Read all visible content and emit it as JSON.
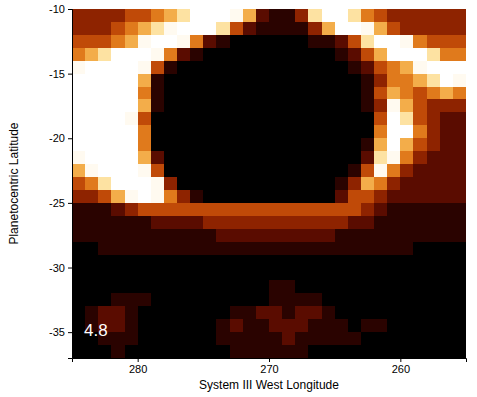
{
  "chart_data": {
    "type": "heatmap",
    "x_label": "System III West Longitude",
    "y_label": "Planetocentric Latitude",
    "annotations": [
      "4.8"
    ],
    "xlim": [
      285,
      255
    ],
    "ylim": [
      -37,
      -10
    ],
    "xticks": [
      280,
      270,
      260
    ],
    "yticks": [
      -10,
      -15,
      -20,
      -25,
      -30,
      -35
    ],
    "zlim": [
      0,
      9
    ],
    "x": [
      284.5,
      283.5,
      282.5,
      281.5,
      280.5,
      279.5,
      278.5,
      277.5,
      276.5,
      275.5,
      274.5,
      273.5,
      272.5,
      271.5,
      270.5,
      269.5,
      268.5,
      267.5,
      266.5,
      265.5,
      264.5,
      263.5,
      262.5,
      261.5,
      260.5,
      259.5,
      258.5,
      257.5,
      256.5,
      255.5
    ],
    "y": [
      -10.5,
      -11.5,
      -12.5,
      -13.5,
      -14.5,
      -15.5,
      -16.5,
      -17.5,
      -18.5,
      -19.5,
      -20.5,
      -21.5,
      -22.5,
      -23.5,
      -24.5,
      -25.5,
      -26.5,
      -27.5,
      -28.5,
      -29.5,
      -30.5,
      -31.5,
      -32.5,
      -33.5,
      -34.5,
      -35.5,
      -36.5
    ],
    "values": [
      [
        3,
        3,
        3,
        3,
        4,
        4,
        5,
        6,
        7,
        9,
        9,
        9,
        8,
        6,
        2,
        1,
        1,
        3,
        7,
        9,
        9,
        7,
        5,
        4,
        3,
        3,
        3,
        3,
        3,
        3
      ],
      [
        3,
        3,
        3,
        4,
        5,
        6,
        7,
        8,
        9,
        9,
        9,
        7,
        4,
        2,
        1,
        1,
        1,
        1,
        3,
        6,
        9,
        9,
        8,
        6,
        4,
        3,
        3,
        3,
        3,
        3
      ],
      [
        4,
        4,
        4,
        5,
        6,
        8,
        9,
        9,
        8,
        5,
        2,
        1,
        0,
        0,
        0,
        0,
        0,
        0,
        1,
        1,
        2,
        4,
        7,
        9,
        9,
        8,
        5,
        4,
        4,
        4
      ],
      [
        5,
        6,
        7,
        9,
        9,
        9,
        8,
        5,
        2,
        1,
        0,
        0,
        0,
        0,
        0,
        0,
        0,
        0,
        0,
        0,
        1,
        2,
        4,
        6,
        9,
        9,
        9,
        7,
        5,
        5
      ],
      [
        8,
        9,
        9,
        9,
        9,
        8,
        4,
        1,
        0,
        0,
        0,
        0,
        0,
        0,
        0,
        0,
        0,
        0,
        0,
        0,
        0,
        1,
        2,
        4,
        5,
        6,
        8,
        9,
        9,
        9
      ],
      [
        9,
        9,
        9,
        9,
        9,
        6,
        1,
        0,
        0,
        0,
        0,
        0,
        0,
        0,
        0,
        0,
        0,
        0,
        0,
        0,
        0,
        0,
        1,
        3,
        5,
        5,
        6,
        7,
        9,
        8
      ],
      [
        9,
        9,
        9,
        9,
        9,
        5,
        1,
        0,
        0,
        0,
        0,
        0,
        0,
        0,
        0,
        0,
        0,
        0,
        0,
        0,
        0,
        0,
        1,
        4,
        6,
        5,
        4,
        5,
        6,
        5
      ],
      [
        9,
        9,
        9,
        9,
        9,
        6,
        1,
        0,
        0,
        0,
        0,
        0,
        0,
        0,
        0,
        0,
        0,
        0,
        0,
        0,
        0,
        0,
        1,
        3,
        8,
        6,
        4,
        3,
        3,
        3
      ],
      [
        9,
        9,
        9,
        9,
        8,
        4,
        0,
        0,
        0,
        0,
        0,
        0,
        0,
        0,
        0,
        0,
        0,
        0,
        0,
        0,
        0,
        0,
        0,
        4,
        9,
        7,
        4,
        3,
        2,
        2
      ],
      [
        9,
        9,
        9,
        9,
        9,
        5,
        0,
        0,
        0,
        0,
        0,
        0,
        0,
        0,
        0,
        0,
        0,
        0,
        0,
        0,
        0,
        0,
        0,
        5,
        9,
        9,
        5,
        3,
        2,
        2
      ],
      [
        9,
        9,
        9,
        9,
        9,
        5,
        0,
        0,
        0,
        0,
        0,
        0,
        0,
        0,
        0,
        0,
        0,
        0,
        0,
        0,
        0,
        0,
        1,
        6,
        9,
        6,
        4,
        3,
        2,
        2
      ],
      [
        8,
        9,
        9,
        9,
        9,
        6,
        2,
        0,
        0,
        0,
        0,
        0,
        0,
        0,
        0,
        0,
        0,
        0,
        0,
        0,
        0,
        0,
        2,
        7,
        8,
        5,
        3,
        2,
        2,
        2
      ],
      [
        6,
        8,
        9,
        9,
        9,
        8,
        4,
        0,
        0,
        0,
        0,
        0,
        0,
        0,
        0,
        0,
        0,
        0,
        0,
        0,
        0,
        1,
        4,
        8,
        5,
        3,
        2,
        2,
        2,
        2
      ],
      [
        4,
        5,
        7,
        9,
        9,
        9,
        8,
        3,
        0,
        0,
        0,
        0,
        0,
        0,
        0,
        0,
        0,
        0,
        0,
        0,
        1,
        3,
        6,
        5,
        3,
        2,
        2,
        2,
        2,
        2
      ],
      [
        3,
        3,
        4,
        6,
        8,
        9,
        8,
        5,
        3,
        1,
        0,
        0,
        0,
        0,
        0,
        0,
        0,
        0,
        0,
        0,
        2,
        4,
        4,
        3,
        2,
        2,
        2,
        2,
        2,
        2
      ],
      [
        1,
        1,
        1,
        2,
        3,
        4,
        4,
        4,
        4,
        4,
        4,
        4,
        4,
        4,
        4,
        4,
        4,
        4,
        4,
        4,
        4,
        4,
        3,
        2,
        1,
        1,
        1,
        1,
        1,
        1
      ],
      [
        1,
        1,
        1,
        1,
        1,
        1,
        2,
        2,
        2,
        2,
        3,
        3,
        3,
        3,
        3,
        3,
        3,
        3,
        3,
        3,
        3,
        2,
        2,
        1,
        1,
        1,
        1,
        1,
        1,
        1
      ],
      [
        1,
        1,
        1,
        1,
        1,
        1,
        1,
        1,
        1,
        1,
        1,
        2,
        2,
        2,
        2,
        2,
        2,
        2,
        2,
        2,
        1,
        1,
        1,
        1,
        1,
        1,
        1,
        1,
        1,
        1
      ],
      [
        0,
        0,
        1,
        1,
        1,
        1,
        1,
        1,
        1,
        1,
        1,
        1,
        1,
        1,
        1,
        1,
        1,
        1,
        1,
        1,
        1,
        1,
        1,
        1,
        1,
        1,
        0,
        0,
        0,
        0
      ],
      [
        0,
        0,
        0,
        0,
        0,
        0,
        0,
        0,
        0,
        0,
        0,
        0,
        0,
        0,
        0,
        0,
        0,
        0,
        0,
        0,
        0,
        0,
        0,
        0,
        0,
        0,
        0,
        0,
        0,
        0
      ],
      [
        0,
        0,
        0,
        0,
        0,
        0,
        0,
        0,
        0,
        0,
        0,
        0,
        0,
        0,
        0,
        0,
        0,
        0,
        0,
        0,
        0,
        0,
        0,
        0,
        0,
        0,
        0,
        0,
        0,
        0
      ],
      [
        0,
        0,
        0,
        0,
        0,
        0,
        0,
        0,
        0,
        0,
        0,
        0,
        0,
        0,
        0,
        1,
        1,
        0,
        0,
        0,
        0,
        0,
        0,
        0,
        0,
        0,
        0,
        0,
        0,
        0
      ],
      [
        0,
        0,
        0,
        1,
        1,
        1,
        0,
        0,
        0,
        0,
        0,
        0,
        0,
        0,
        0,
        1,
        1,
        1,
        1,
        0,
        0,
        0,
        0,
        0,
        0,
        0,
        0,
        0,
        0,
        0
      ],
      [
        0,
        1,
        2,
        2,
        1,
        0,
        0,
        0,
        0,
        0,
        0,
        0,
        1,
        1,
        2,
        2,
        1,
        2,
        2,
        1,
        0,
        0,
        0,
        0,
        0,
        0,
        0,
        0,
        0,
        0
      ],
      [
        0,
        1,
        2,
        2,
        1,
        0,
        0,
        0,
        0,
        0,
        0,
        1,
        2,
        1,
        1,
        2,
        2,
        2,
        1,
        1,
        1,
        0,
        1,
        1,
        0,
        0,
        0,
        0,
        0,
        0
      ],
      [
        0,
        0,
        1,
        1,
        1,
        0,
        0,
        0,
        0,
        0,
        0,
        1,
        1,
        1,
        1,
        1,
        2,
        1,
        1,
        1,
        1,
        1,
        0,
        0,
        0,
        0,
        0,
        0,
        0,
        0
      ],
      [
        0,
        0,
        0,
        1,
        0,
        0,
        0,
        0,
        0,
        0,
        0,
        0,
        1,
        1,
        1,
        1,
        1,
        1,
        0,
        0,
        0,
        0,
        0,
        0,
        0,
        0,
        0,
        0,
        0,
        0
      ]
    ]
  }
}
